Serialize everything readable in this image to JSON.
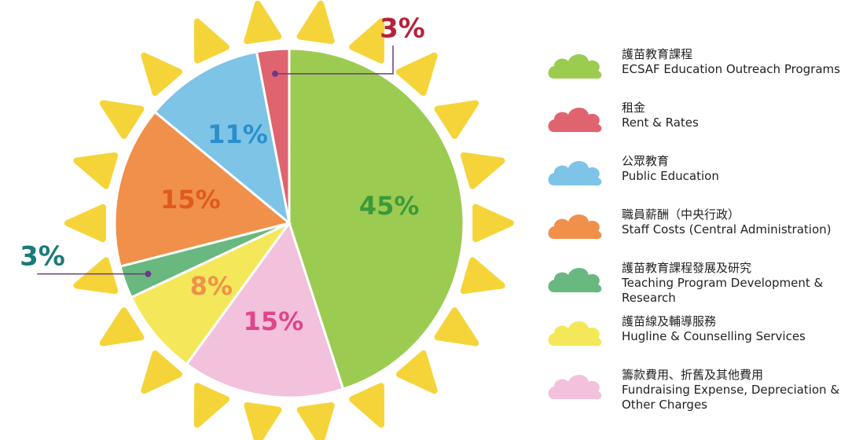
{
  "chart_data": {
    "type": "pie",
    "categories_zh": [
      "護苗教育課程",
      "租金",
      "公眾教育",
      "職員薪酬（中央行政）",
      "護苗教育課程發展及研究",
      "護苗線及輔導服務",
      "籌款費用、折舊及其他費用"
    ],
    "categories": [
      "ECSAF Education Outreach Programs",
      "Rent & Rates",
      "Public Education",
      "Staff Costs (Central Administration)",
      "Teaching Program Development & Research",
      "Hugline & Counselling Services",
      "Fundraising Expense, Depreciation & Other Charges"
    ],
    "values": [
      45,
      3,
      11,
      15,
      3,
      8,
      15
    ],
    "value_labels": [
      "45%",
      "3%",
      "11%",
      "15%",
      "3%",
      "8%",
      "15%"
    ],
    "colors": [
      "#9ccb52",
      "#e06470",
      "#7ec4e6",
      "#f0904a",
      "#68b880",
      "#f4e85a",
      "#f2c1dc"
    ],
    "label_colors": [
      "#3a9a3a",
      "#b5213a",
      "#2a8fcc",
      "#e05a1c",
      "#1a7a78",
      "#f0904a",
      "#e0458a"
    ]
  }
}
